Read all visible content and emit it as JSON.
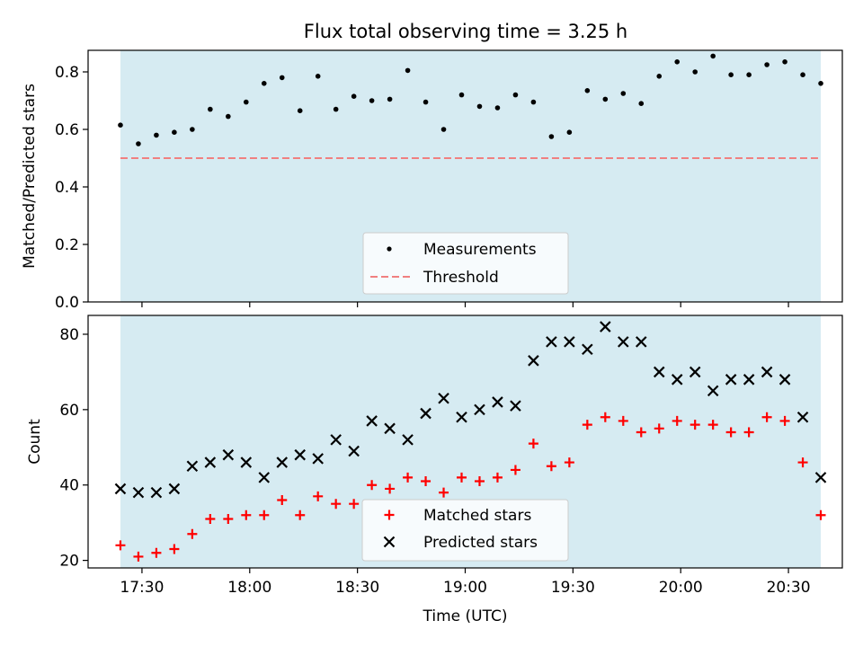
{
  "chart_data": [
    {
      "type": "scatter",
      "title": "Flux total observing time = 3.25 h",
      "xlabel": "",
      "ylabel": "Matched/Predicted stars",
      "ylim": [
        0,
        0.875
      ],
      "yticks": [
        "0.0",
        "0.2",
        "0.4",
        "0.6",
        "0.8"
      ],
      "xlim": [
        "17:15",
        "20:45"
      ],
      "shaded_band": {
        "x_start": "17:24",
        "x_end": "20:39",
        "color": "#add8e6"
      },
      "grid": false,
      "legend_position": "lower center",
      "series": [
        {
          "name": "Measurements",
          "marker": "dot",
          "color": "#000000",
          "x": [
            "17:24",
            "17:29",
            "17:34",
            "17:39",
            "17:44",
            "17:49",
            "17:54",
            "17:59",
            "18:04",
            "18:09",
            "18:14",
            "18:19",
            "18:24",
            "18:29",
            "18:34",
            "18:39",
            "18:44",
            "18:49",
            "18:54",
            "18:59",
            "19:04",
            "19:09",
            "19:14",
            "19:19",
            "19:24",
            "19:29",
            "19:34",
            "19:39",
            "19:44",
            "19:49",
            "19:54",
            "19:59",
            "20:04",
            "20:09",
            "20:14",
            "20:19",
            "20:24",
            "20:29",
            "20:34",
            "20:39"
          ],
          "y": [
            0.615,
            0.55,
            0.58,
            0.59,
            0.6,
            0.67,
            0.645,
            0.695,
            0.76,
            0.78,
            0.665,
            0.785,
            0.67,
            0.715,
            0.7,
            0.705,
            0.805,
            0.695,
            0.6,
            0.72,
            0.68,
            0.675,
            0.72,
            0.695,
            0.575,
            0.59,
            0.735,
            0.705,
            0.725,
            0.69,
            0.785,
            0.835,
            0.8,
            0.855,
            0.79,
            0.79,
            0.825,
            0.835,
            0.79,
            0.76
          ]
        },
        {
          "name": "Threshold",
          "marker": "dashed-line",
          "color": "#f08080",
          "y_constant": 0.5
        }
      ]
    },
    {
      "type": "scatter",
      "title": "",
      "xlabel": "Time (UTC)",
      "ylabel": "Count",
      "ylim": [
        18,
        85
      ],
      "yticks": [
        "20",
        "40",
        "60",
        "80"
      ],
      "xlim": [
        "17:15",
        "20:45"
      ],
      "xticks": [
        "17:30",
        "18:00",
        "18:30",
        "19:00",
        "19:30",
        "20:00",
        "20:30"
      ],
      "shaded_band": {
        "x_start": "17:24",
        "x_end": "20:39",
        "color": "#add8e6"
      },
      "grid": false,
      "legend_position": "lower center",
      "series": [
        {
          "name": "Matched stars",
          "marker": "plus",
          "color": "#ff0000",
          "x": [
            "17:24",
            "17:29",
            "17:34",
            "17:39",
            "17:44",
            "17:49",
            "17:54",
            "17:59",
            "18:04",
            "18:09",
            "18:14",
            "18:19",
            "18:24",
            "18:29",
            "18:34",
            "18:39",
            "18:44",
            "18:49",
            "18:54",
            "18:59",
            "19:04",
            "19:09",
            "19:14",
            "19:19",
            "19:24",
            "19:29",
            "19:34",
            "19:39",
            "19:44",
            "19:49",
            "19:54",
            "19:59",
            "20:04",
            "20:09",
            "20:14",
            "20:19",
            "20:24",
            "20:29",
            "20:34",
            "20:39"
          ],
          "y": [
            24,
            21,
            22,
            23,
            27,
            31,
            31,
            32,
            32,
            36,
            32,
            37,
            35,
            35,
            40,
            39,
            42,
            41,
            38,
            42,
            41,
            42,
            44,
            51,
            45,
            46,
            56,
            58,
            57,
            54,
            55,
            57,
            56,
            56,
            54,
            54,
            58,
            57,
            46,
            32
          ]
        },
        {
          "name": "Predicted stars",
          "marker": "x",
          "color": "#000000",
          "x": [
            "17:24",
            "17:29",
            "17:34",
            "17:39",
            "17:44",
            "17:49",
            "17:54",
            "17:59",
            "18:04",
            "18:09",
            "18:14",
            "18:19",
            "18:24",
            "18:29",
            "18:34",
            "18:39",
            "18:44",
            "18:49",
            "18:54",
            "18:59",
            "19:04",
            "19:09",
            "19:14",
            "19:19",
            "19:24",
            "19:29",
            "19:34",
            "19:39",
            "19:44",
            "19:49",
            "19:54",
            "19:59",
            "20:04",
            "20:09",
            "20:14",
            "20:19",
            "20:24",
            "20:29",
            "20:34",
            "20:39"
          ],
          "y": [
            39,
            38,
            38,
            39,
            45,
            46,
            48,
            46,
            42,
            46,
            48,
            47,
            52,
            49,
            57,
            55,
            52,
            59,
            63,
            58,
            60,
            62,
            61,
            73,
            78,
            78,
            76,
            82,
            78,
            78,
            70,
            68,
            70,
            65,
            68,
            68,
            70,
            68,
            58,
            42
          ]
        }
      ]
    }
  ]
}
